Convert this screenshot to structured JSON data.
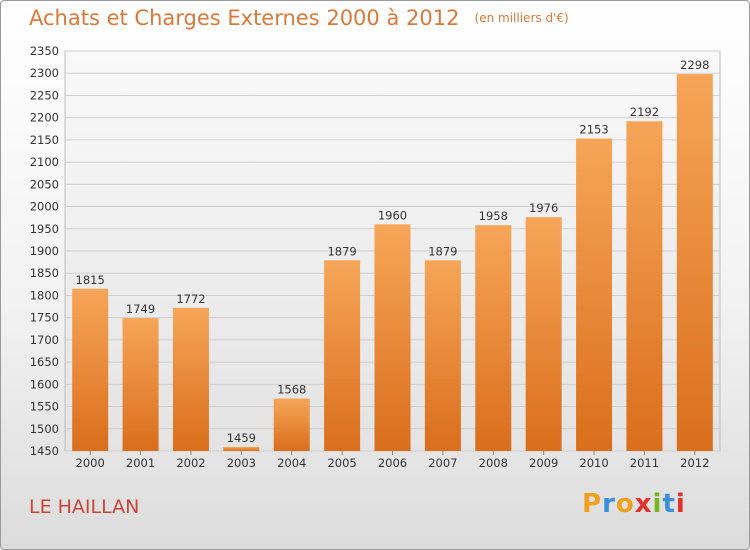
{
  "header": {
    "title": "Achats et Charges Externes 2000 à 2012",
    "unit": "(en milliers d'€)"
  },
  "footer": {
    "commune": "LE HAILLAN",
    "logo": [
      "P",
      "r",
      "o",
      "x",
      "i",
      "t",
      "i"
    ]
  },
  "colors": {
    "title": "#d97a3a",
    "commune": "#c8453a",
    "bar_top": "#f6a558",
    "bar_bottom": "#d96e1c",
    "logo": [
      "#f0a020",
      "#3b8fd8",
      "#f0a020",
      "#e0322d",
      "#79b51c",
      "#3b8fd8",
      "#e0322d"
    ]
  },
  "chart_data": {
    "type": "bar",
    "title": "Achats et Charges Externes 2000 à 2012",
    "subtitle": "(en milliers d'€)",
    "categories": [
      "2000",
      "2001",
      "2002",
      "2003",
      "2004",
      "2005",
      "2006",
      "2007",
      "2008",
      "2009",
      "2010",
      "2011",
      "2012"
    ],
    "values": [
      1815,
      1749,
      1772,
      1459,
      1568,
      1879,
      1960,
      1879,
      1958,
      1976,
      2153,
      2192,
      2298
    ],
    "ylim": [
      1450,
      2350
    ],
    "ytick_step": 50,
    "grid": true,
    "data_labels": true
  }
}
